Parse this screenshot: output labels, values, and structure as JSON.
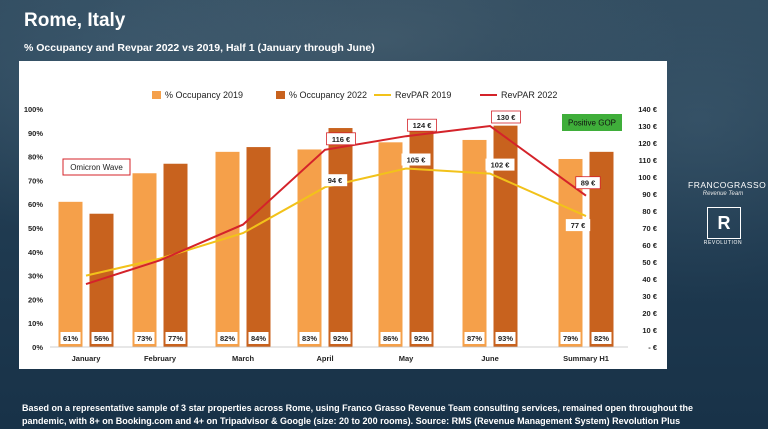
{
  "header": {
    "title": "Rome, Italy",
    "subtitle": "% Occupancy and Revpar 2022 vs 2019, Half 1 (January through June)"
  },
  "footer": {
    "line1": "Based on a representative sample of 3 star properties across Rome, using Franco Grasso Revenue Team consulting services, remained open throughout the",
    "line2": "pandemic, with 8+ on Booking.com and 4+ on Tripadvisor & Google (size: 20 to 200 rooms). Source: RMS (Revenue Management System) Revolution Plus"
  },
  "brand": {
    "name": "FRANCOGRASSO",
    "tagline": "Revenue Team",
    "logo_letter": "R",
    "logo_label": "REVOLUTION"
  },
  "colors": {
    "occ2019": "#f5a04a",
    "occ2022": "#c8621e",
    "revpar2019": "#f2c21a",
    "revpar2022": "#d4232a",
    "annotation_green": "#3fae3a",
    "annotation_red": "#d4232a"
  },
  "chart_data": {
    "type": "bar",
    "categories": [
      "January",
      "February",
      "March",
      "April",
      "May",
      "June",
      "Summary H1"
    ],
    "series": [
      {
        "name": "% Occupancy 2019",
        "type": "bar",
        "axis": "left",
        "values": [
          61,
          73,
          82,
          83,
          86,
          87,
          79
        ],
        "labels": [
          "61%",
          "73%",
          "82%",
          "83%",
          "86%",
          "87%",
          "79%"
        ]
      },
      {
        "name": "% Occupancy 2022",
        "type": "bar",
        "axis": "left",
        "values": [
          56,
          77,
          84,
          92,
          92,
          93,
          82
        ],
        "labels": [
          "56%",
          "77%",
          "84%",
          "92%",
          "92%",
          "93%",
          "82%"
        ]
      },
      {
        "name": "RevPAR 2019",
        "type": "line",
        "axis": "right",
        "values": [
          42,
          52,
          67,
          94,
          105,
          102,
          77
        ]
      },
      {
        "name": "RevPAR 2022",
        "type": "line",
        "axis": "right",
        "values": [
          37,
          51,
          72,
          116,
          124,
          130,
          89
        ]
      }
    ],
    "point_labels": {
      "RevPAR 2019": [
        {
          "index": 3,
          "text": "94 €"
        },
        {
          "index": 4,
          "text": "105 €"
        },
        {
          "index": 5,
          "text": "102 €"
        },
        {
          "index": 6,
          "text": "77 €"
        }
      ],
      "RevPAR 2022": [
        {
          "index": 3,
          "text": "116 €"
        },
        {
          "index": 4,
          "text": "124 €"
        },
        {
          "index": 5,
          "text": "130 €"
        },
        {
          "index": 6,
          "text": "89 €"
        }
      ]
    },
    "left_axis": {
      "min": 0,
      "max": 100,
      "ticks": [
        "0%",
        "10%",
        "20%",
        "30%",
        "40%",
        "50%",
        "60%",
        "70%",
        "80%",
        "90%",
        "100%"
      ]
    },
    "right_axis": {
      "min": 0,
      "max": 140,
      "ticks": [
        "-  €",
        "10 €",
        "20 €",
        "30 €",
        "40 €",
        "50 €",
        "60 €",
        "70 €",
        "80 €",
        "90 €",
        "100 €",
        "110 €",
        "120 €",
        "130 €",
        "140 €"
      ]
    },
    "annotations": [
      {
        "text": "Omicron Wave",
        "style": "red-outline"
      },
      {
        "text": "Positive GOP",
        "style": "green-fill"
      }
    ],
    "legend_position": "top",
    "grid": false
  }
}
